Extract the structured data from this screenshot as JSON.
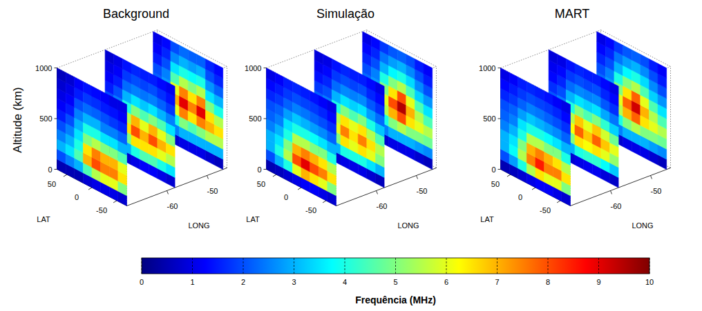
{
  "chart_data": {
    "type": "heatmap3d",
    "xlabel": "LAT",
    "ylabel": "LONG",
    "zlabel": "Altitude (km)",
    "xlim": [
      -70,
      70
    ],
    "ylim": [
      -70,
      -45
    ],
    "zlim": [
      0,
      1000
    ],
    "xticks": [
      -50,
      0,
      50
    ],
    "yticks": [
      -60,
      -50
    ],
    "zticks": [
      0,
      500,
      1000
    ],
    "x_edges": [
      70,
      52.5,
      35,
      17.5,
      0,
      -17.5,
      -35,
      -52.5,
      -70
    ],
    "z_edges": [
      0,
      100,
      200,
      300,
      400,
      500,
      600,
      700,
      800,
      900,
      1000
    ],
    "colorbar": {
      "label": "Frequência (MHz)",
      "range": [
        0,
        10
      ],
      "ticks": [
        0,
        1,
        2,
        3,
        4,
        5,
        6,
        7,
        8,
        9,
        10
      ]
    },
    "panels": [
      {
        "title": "Background",
        "slices": [
          {
            "lon": -70,
            "cells": [
              [
                0.5,
                0.5,
                0.5,
                0.8,
                1,
                1,
                1,
                0.8
              ],
              [
                2,
                2.5,
                3,
                4.5,
                5.5,
                6,
                6,
                5
              ],
              [
                3,
                3.5,
                4.5,
                7,
                8,
                7.5,
                7.5,
                6.5
              ],
              [
                2.5,
                3,
                4,
                6.5,
                7.5,
                7,
                7,
                6
              ],
              [
                2,
                2.5,
                3.5,
                5,
                5.5,
                5,
                5,
                4.5
              ],
              [
                1.5,
                2,
                3,
                4,
                4,
                3.5,
                3.5,
                3
              ],
              [
                1.2,
                1.5,
                2.5,
                3,
                3,
                2.5,
                2.5,
                2.2
              ],
              [
                1,
                1.2,
                2,
                2.3,
                2.2,
                2,
                1.8,
                1.6
              ],
              [
                0.8,
                1,
                1.5,
                1.8,
                1.7,
                1.5,
                1.4,
                1.2
              ],
              [
                0.6,
                0.8,
                1.2,
                1.4,
                1.3,
                1.2,
                1,
                1
              ]
            ]
          },
          {
            "lon": -58,
            "cells": [
              [
                0.5,
                0.6,
                0.8,
                1,
                1.2,
                1.2,
                1,
                0.8
              ],
              [
                1.5,
                2,
                3,
                4,
                4.5,
                4.5,
                4,
                3.5
              ],
              [
                2.5,
                3,
                5,
                6.5,
                6.5,
                6.5,
                6,
                5.5
              ],
              [
                3,
                3.5,
                6.5,
                8,
                7,
                8,
                7,
                6.5
              ],
              [
                2.5,
                3,
                5.5,
                7,
                6,
                7,
                6,
                5
              ],
              [
                2,
                2.5,
                4,
                5,
                4.5,
                5,
                4.5,
                3.5
              ],
              [
                1.5,
                2,
                3,
                3.5,
                3.2,
                3.5,
                3,
                2.5
              ],
              [
                1.2,
                1.5,
                2.3,
                2.5,
                2.4,
                2.5,
                2.2,
                1.8
              ],
              [
                1,
                1.2,
                1.8,
                2,
                1.9,
                2,
                1.7,
                1.4
              ],
              [
                0.8,
                1,
                1.4,
                1.6,
                1.5,
                1.5,
                1.3,
                1.1
              ]
            ]
          },
          {
            "lon": -46,
            "cells": [
              [
                0.5,
                0.6,
                0.8,
                1,
                1,
                1,
                0.8,
                0.6
              ],
              [
                1.2,
                1.5,
                2.5,
                3,
                3,
                3,
                3,
                3
              ],
              [
                2,
                2.5,
                4,
                5,
                4.5,
                5,
                5.5,
                5.5
              ],
              [
                2.5,
                3,
                6,
                7.5,
                6.5,
                7.5,
                7,
                6.5
              ],
              [
                2.5,
                3,
                7,
                9,
                7.5,
                9,
                6.5,
                5.5
              ],
              [
                2.2,
                2.8,
                6,
                7.5,
                6.5,
                7.5,
                5,
                4
              ],
              [
                2,
                2.5,
                4.5,
                5.5,
                5,
                5.5,
                3.5,
                3
              ],
              [
                1.5,
                2,
                3.5,
                4,
                3.8,
                4,
                2.7,
                2.2
              ],
              [
                1.2,
                1.6,
                2.6,
                3,
                2.8,
                3,
                2,
                1.6
              ],
              [
                1,
                1.3,
                2,
                2.3,
                2.2,
                2.2,
                1.6,
                1.3
              ]
            ]
          }
        ]
      },
      {
        "title": "Simulação",
        "slices": [
          {
            "lon": -70,
            "cells": [
              [
                0.5,
                0.6,
                0.8,
                1,
                1.2,
                1.2,
                1,
                0.8
              ],
              [
                2,
                3,
                4,
                6,
                7,
                6.5,
                6,
                5
              ],
              [
                3,
                4,
                5.5,
                8,
                9,
                8,
                7.5,
                6.5
              ],
              [
                3,
                3.5,
                5,
                7,
                7.5,
                7,
                6.5,
                5.5
              ],
              [
                2.5,
                3,
                4,
                5.5,
                5.5,
                5,
                5,
                4
              ],
              [
                2.2,
                2.5,
                3.5,
                4,
                4,
                3.8,
                3.5,
                3
              ],
              [
                2,
                2.2,
                2.8,
                3.2,
                3,
                2.8,
                2.6,
                2.2
              ],
              [
                1.6,
                1.8,
                2.2,
                2.5,
                2.4,
                2.2,
                2,
                1.7
              ],
              [
                1.3,
                1.5,
                1.8,
                2,
                1.9,
                1.8,
                1.6,
                1.3
              ],
              [
                1,
                1.2,
                1.5,
                1.6,
                1.5,
                1.4,
                1.2,
                1
              ]
            ]
          },
          {
            "lon": -58,
            "cells": [
              [
                0.5,
                0.6,
                0.8,
                1,
                1,
                1,
                0.8,
                0.6
              ],
              [
                1.5,
                2,
                3,
                4,
                4,
                4,
                3.5,
                3
              ],
              [
                2.5,
                3,
                5,
                6.5,
                6,
                6.5,
                6,
                5
              ],
              [
                3,
                3.5,
                6,
                7.5,
                6.5,
                7.5,
                6.5,
                5.5
              ],
              [
                2.5,
                3,
                5.5,
                6.5,
                6,
                6.5,
                5.5,
                4.5
              ],
              [
                2.2,
                2.5,
                4,
                5,
                4.5,
                5,
                4,
                3.2
              ],
              [
                1.8,
                2,
                3,
                3.5,
                3.3,
                3.5,
                2.8,
                2.3
              ],
              [
                1.4,
                1.6,
                2.3,
                2.6,
                2.5,
                2.6,
                2.1,
                1.7
              ],
              [
                1.1,
                1.3,
                1.8,
                2,
                1.9,
                2,
                1.6,
                1.3
              ],
              [
                0.9,
                1,
                1.4,
                1.6,
                1.5,
                1.5,
                1.3,
                1
              ]
            ]
          },
          {
            "lon": -46,
            "cells": [
              [
                0.5,
                0.6,
                0.8,
                1,
                1,
                1,
                0.8,
                0.6
              ],
              [
                1.2,
                1.5,
                2.5,
                3,
                3,
                3,
                2.8,
                2.6
              ],
              [
                2,
                2.5,
                4,
                5,
                5.5,
                5,
                5,
                4.8
              ],
              [
                2.5,
                3,
                5.5,
                7,
                8,
                6.5,
                6,
                5.5
              ],
              [
                2.5,
                3,
                6,
                8,
                9.5,
                7,
                5.5,
                4.5
              ],
              [
                2.3,
                2.8,
                5,
                6.5,
                8,
                6,
                4.5,
                3.5
              ],
              [
                2,
                2.5,
                4,
                5,
                5.5,
                4.5,
                3.3,
                2.7
              ],
              [
                1.6,
                2,
                3,
                3.7,
                4,
                3.4,
                2.6,
                2
              ],
              [
                1.3,
                1.6,
                2.4,
                2.8,
                3,
                2.6,
                2,
                1.5
              ],
              [
                1,
                1.3,
                1.8,
                2.1,
                2.2,
                2,
                1.5,
                1.2
              ]
            ]
          }
        ]
      },
      {
        "title": "MART",
        "slices": [
          {
            "lon": -70,
            "cells": [
              [
                0.5,
                0.6,
                0.8,
                1,
                1.2,
                1.2,
                1,
                0.8
              ],
              [
                2,
                2.8,
                4,
                5.5,
                6.5,
                6,
                6,
                5
              ],
              [
                3,
                3.8,
                5.5,
                7.5,
                8.5,
                7.5,
                7.5,
                6.5
              ],
              [
                3,
                3.5,
                5,
                7,
                7.5,
                7,
                6.5,
                5.5
              ],
              [
                2.5,
                3,
                4,
                5.5,
                5.5,
                5,
                5,
                4
              ],
              [
                2.2,
                2.5,
                3.5,
                4,
                4,
                3.8,
                3.5,
                3
              ],
              [
                2,
                2.2,
                2.8,
                3.2,
                3,
                2.8,
                2.6,
                2.2
              ],
              [
                1.6,
                1.8,
                2.2,
                2.5,
                2.4,
                2.2,
                2,
                1.7
              ],
              [
                1.3,
                1.5,
                1.8,
                2,
                1.9,
                1.8,
                1.6,
                1.3
              ],
              [
                1,
                1.2,
                1.5,
                1.6,
                1.5,
                1.4,
                1.2,
                1
              ]
            ]
          },
          {
            "lon": -58,
            "cells": [
              [
                0.5,
                0.6,
                0.8,
                1,
                1.1,
                1.1,
                0.9,
                0.7
              ],
              [
                1.5,
                2,
                3,
                4,
                4.2,
                4.2,
                3.8,
                3.2
              ],
              [
                2.5,
                3,
                5,
                6.5,
                6.2,
                6.5,
                6,
                5.2
              ],
              [
                3,
                3.5,
                6.2,
                7.8,
                6.8,
                7.8,
                6.8,
                6
              ],
              [
                2.5,
                3,
                5.5,
                6.8,
                6,
                6.8,
                5.8,
                4.8
              ],
              [
                2.1,
                2.5,
                4,
                5,
                4.5,
                5,
                4.2,
                3.3
              ],
              [
                1.7,
                2,
                3,
                3.5,
                3.3,
                3.5,
                2.9,
                2.4
              ],
              [
                1.3,
                1.6,
                2.3,
                2.6,
                2.5,
                2.6,
                2.1,
                1.7
              ],
              [
                1.1,
                1.3,
                1.8,
                2,
                1.9,
                2,
                1.6,
                1.3
              ],
              [
                0.9,
                1,
                1.4,
                1.6,
                1.5,
                1.5,
                1.3,
                1
              ]
            ]
          },
          {
            "lon": -46,
            "cells": [
              [
                0.5,
                0.6,
                0.8,
                1,
                1,
                1,
                0.8,
                0.6
              ],
              [
                1.2,
                1.5,
                2.5,
                3,
                3,
                3,
                2.8,
                2.6
              ],
              [
                2,
                2.5,
                4,
                5,
                5.5,
                5,
                5,
                4.8
              ],
              [
                2.5,
                3,
                5.5,
                7,
                7.8,
                6.5,
                6,
                5.5
              ],
              [
                2.5,
                3,
                6,
                7.8,
                9.2,
                7,
                5.5,
                4.5
              ],
              [
                2.3,
                2.8,
                5,
                6.5,
                7.8,
                6,
                4.5,
                3.5
              ],
              [
                2,
                2.5,
                4,
                5,
                5.5,
                4.5,
                3.3,
                2.7
              ],
              [
                1.6,
                2,
                3,
                3.7,
                4,
                3.4,
                2.6,
                2
              ],
              [
                1.3,
                1.6,
                2.4,
                2.8,
                3,
                2.6,
                2,
                1.5
              ],
              [
                1,
                1.3,
                1.8,
                2.1,
                2.2,
                2,
                1.5,
                1.2
              ]
            ]
          }
        ]
      }
    ]
  }
}
